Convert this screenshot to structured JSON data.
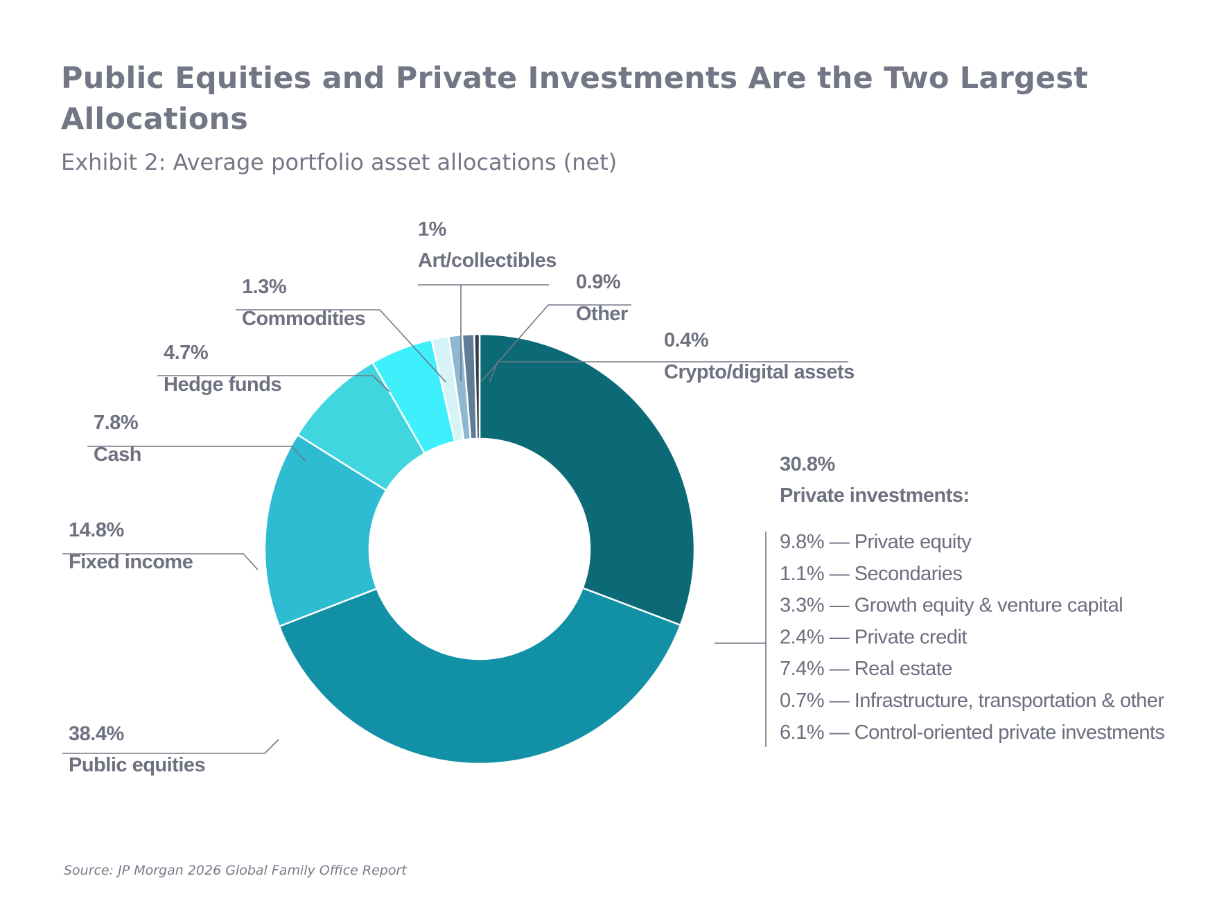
{
  "chart_data": {
    "type": "pie",
    "variant": "donut",
    "title": "Public Equities and Private Investments Are the Two Largest Allocations",
    "subtitle": "Exhibit 2: Average portfolio asset allocations (net)",
    "source": "Source: JP Morgan 2026 Global Family Office Report",
    "slices": [
      {
        "label": "Private investments:",
        "value": 30.8,
        "value_label": "30.8%",
        "color": "#0b6a76"
      },
      {
        "label": "Public equities",
        "value": 38.4,
        "value_label": "38.4%",
        "color": "#1290a5"
      },
      {
        "label": "Fixed income",
        "value": 14.8,
        "value_label": "14.8%",
        "color": "#2ebcd3"
      },
      {
        "label": "Cash",
        "value": 7.8,
        "value_label": "7.8%",
        "color": "#40d6e0"
      },
      {
        "label": "Hedge funds",
        "value": 4.7,
        "value_label": "4.7%",
        "color": "#3df0fc"
      },
      {
        "label": "Commodities",
        "value": 1.3,
        "value_label": "1.3%",
        "color": "#d6f4f8"
      },
      {
        "label": "Art/collectibles",
        "value": 1.0,
        "value_label": "1%",
        "color": "#8eb8d0"
      },
      {
        "label": "Other",
        "value": 0.9,
        "value_label": "0.9%",
        "color": "#5f7d97"
      },
      {
        "label": "Crypto/digital assets",
        "value": 0.4,
        "value_label": "0.4%",
        "color": "#353f49"
      }
    ],
    "private_breakdown": [
      {
        "text": "9.8% — Private equity"
      },
      {
        "text": "1.1% — Secondaries"
      },
      {
        "text": "3.3% — Growth equity & venture capital"
      },
      {
        "text": "2.4% — Private credit"
      },
      {
        "text": "7.4% — Real estate"
      },
      {
        "text": "0.7% — Infrastructure, transportation & other"
      },
      {
        "text": "6.1% — Control-oriented private investments"
      }
    ]
  }
}
